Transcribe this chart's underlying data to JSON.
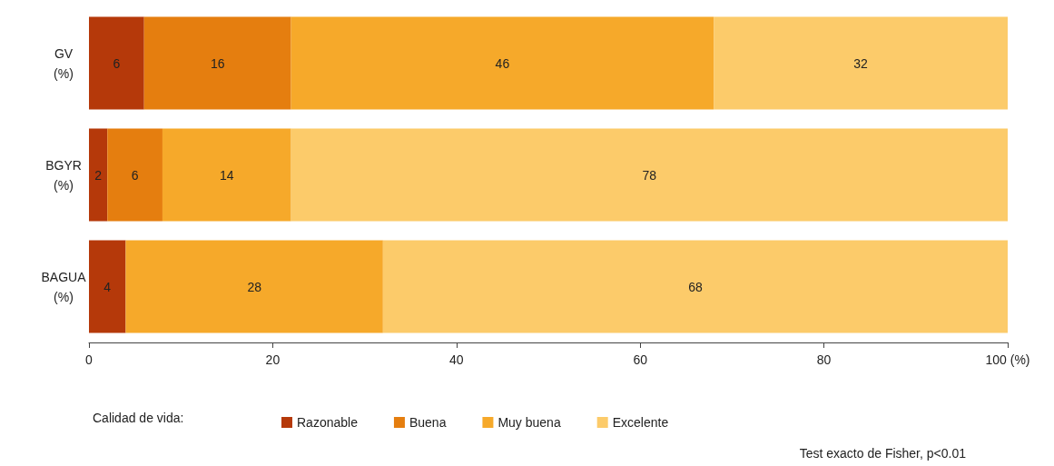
{
  "chart_data": {
    "type": "bar",
    "orientation": "horizontal",
    "stacked": true,
    "categories": [
      "GV\n(%)",
      "BGYR\n(%)",
      "BAGUA\n(%)"
    ],
    "series": [
      {
        "name": "Razonable",
        "color": "#b5390a",
        "values": [
          6,
          2,
          4
        ]
      },
      {
        "name": "Buena",
        "color": "#e57e0f",
        "values": [
          16,
          6,
          null
        ]
      },
      {
        "name": "Muy buena",
        "color": "#f6a92a",
        "values": [
          46,
          14,
          28
        ]
      },
      {
        "name": "Excelente",
        "color": "#fccb6a",
        "values": [
          32,
          78,
          68
        ]
      }
    ],
    "xlim": [
      0,
      100
    ],
    "xticks": [
      0,
      20,
      40,
      60,
      80,
      {
        "value": 100,
        "label": "100 (%)"
      }
    ],
    "data_labels": true,
    "grid": false,
    "legend": "bottom",
    "legend_title": "Calidad de vida:",
    "annotations": [
      "Test exacto de Fisher, p<0.01"
    ]
  }
}
